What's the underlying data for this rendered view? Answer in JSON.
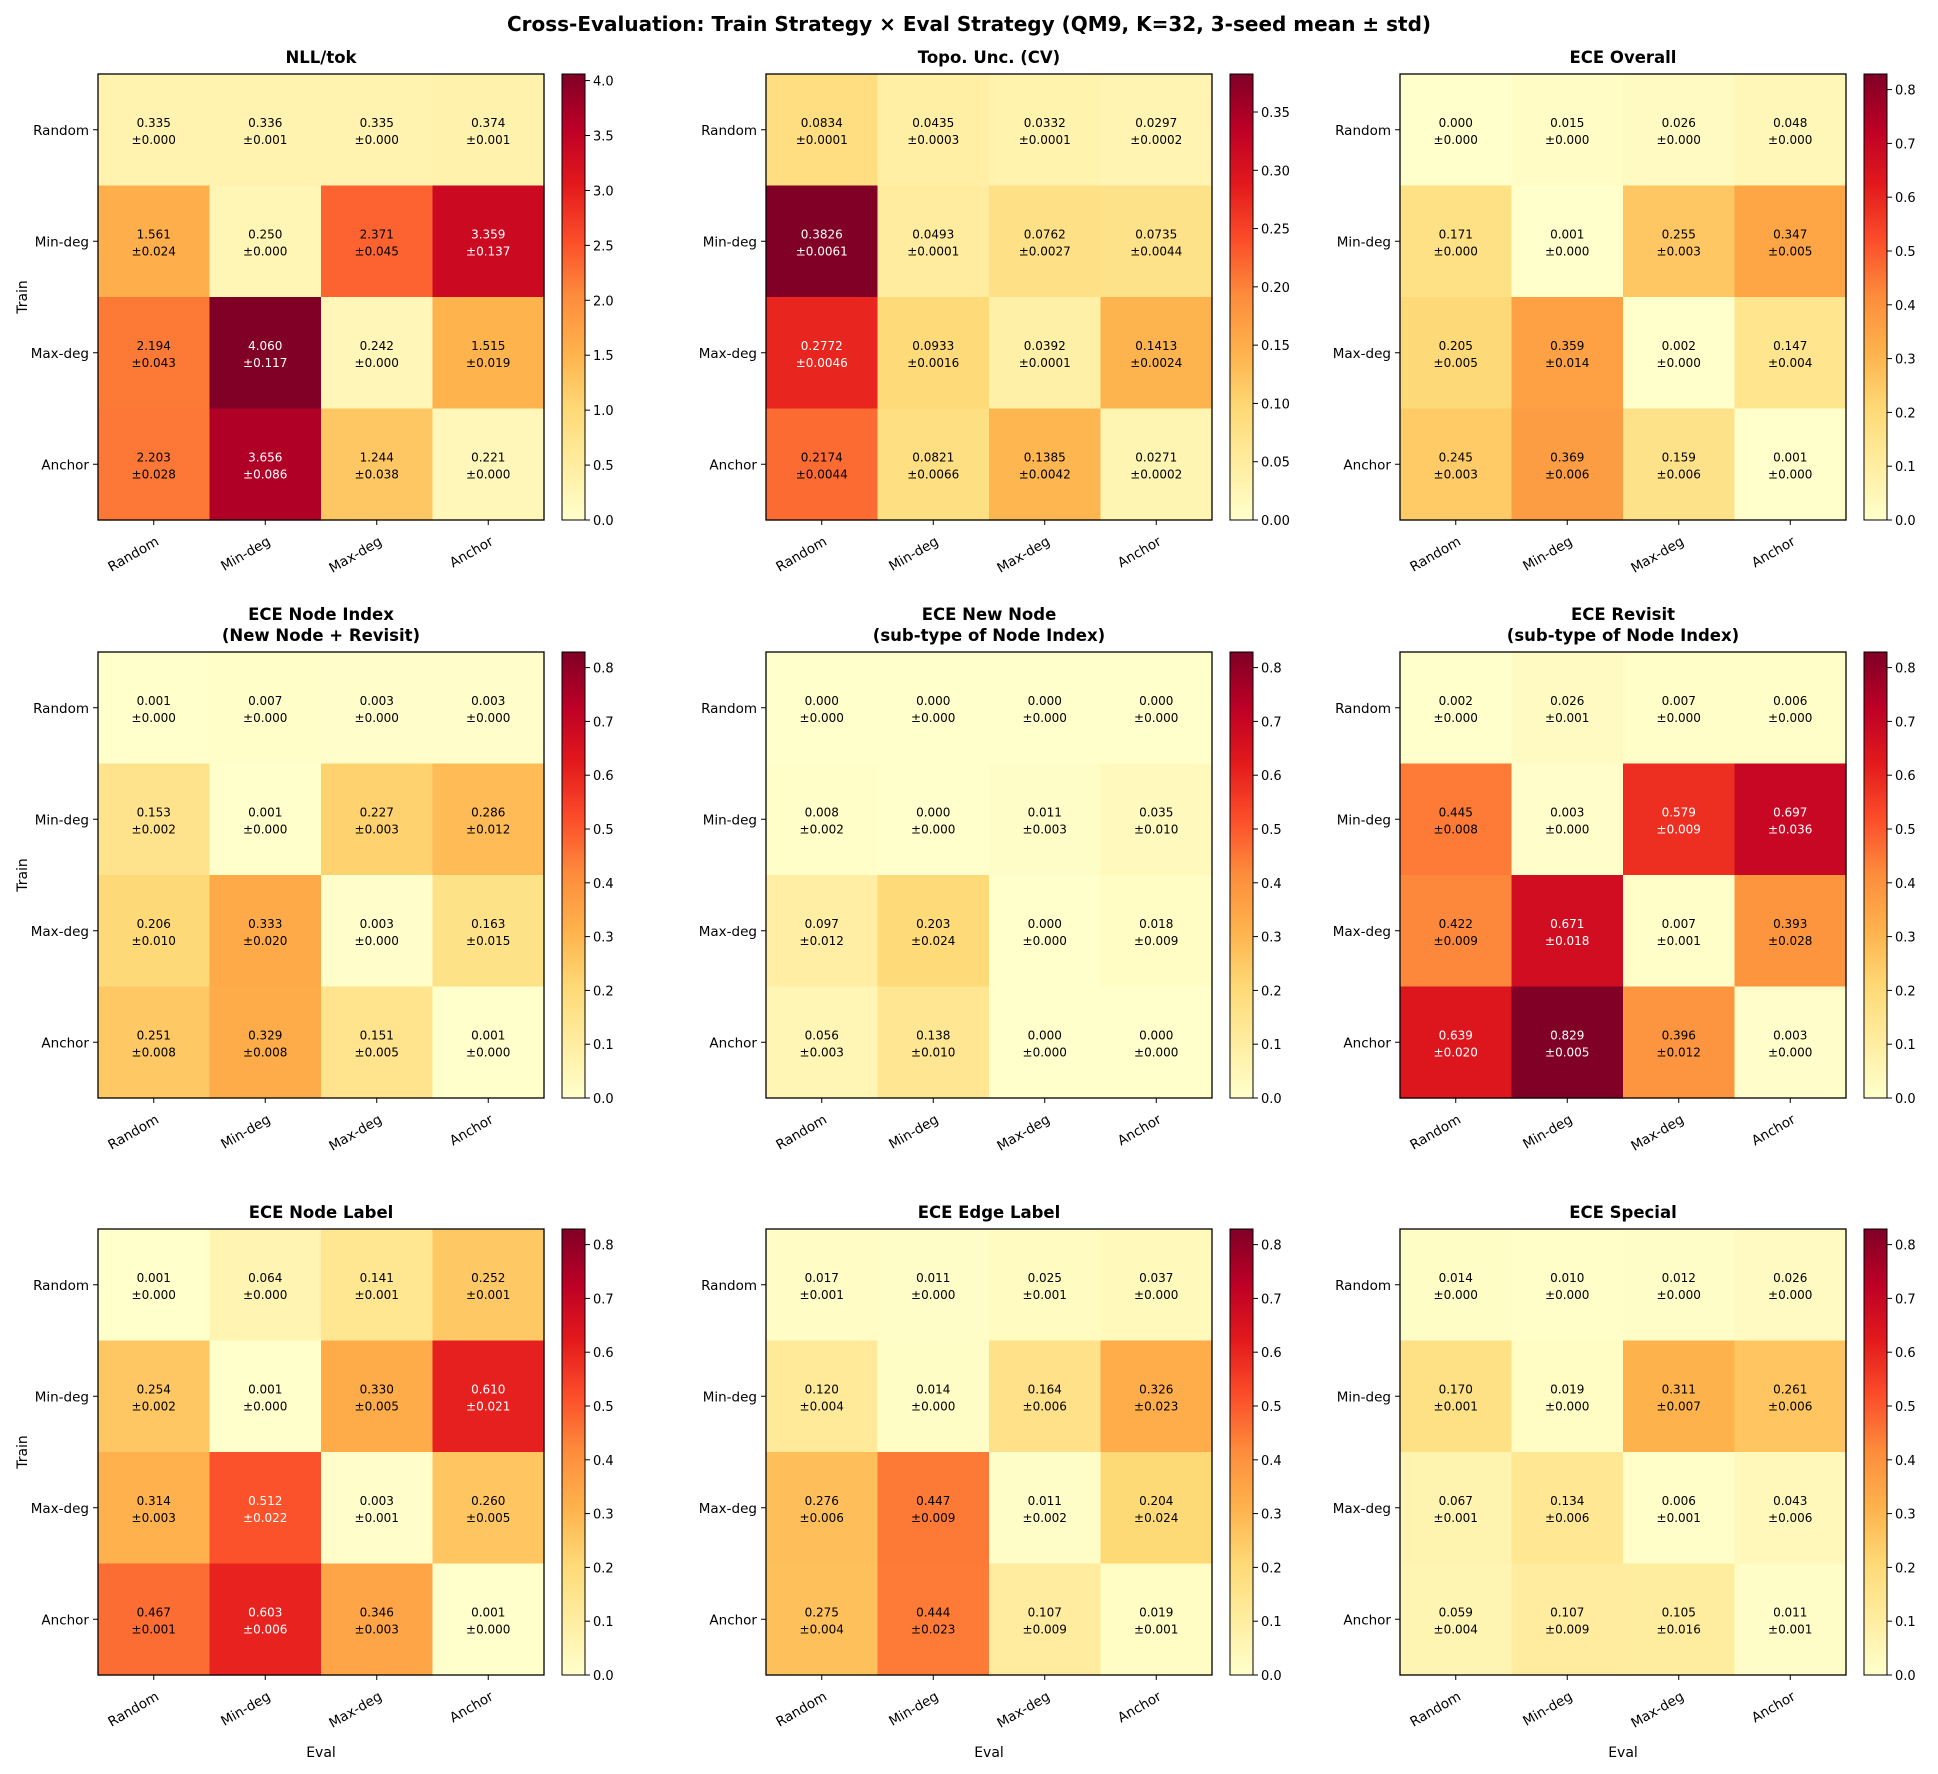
{
  "chart_data": {
    "type": "heatmap",
    "title": "Cross-Evaluation: Train Strategy × Eval Strategy  (QM9, K=32, 3-seed mean ± std)",
    "xlabel": "Eval",
    "ylabel": "Train",
    "categories": [
      "Random",
      "Min-deg",
      "Max-deg",
      "Anchor"
    ],
    "colormap": "YlOrRd",
    "panels": [
      {
        "title": [
          "NLL/tok"
        ],
        "vmax": 4.06,
        "colorbar_ticks": [
          0.0,
          0.5,
          1.0,
          1.5,
          2.0,
          2.5,
          3.0,
          3.5,
          4.0
        ],
        "tick_decimals": 1,
        "decimals": 3,
        "values": [
          [
            0.335,
            0.336,
            0.335,
            0.374
          ],
          [
            1.561,
            0.25,
            2.371,
            3.359
          ],
          [
            2.194,
            4.06,
            0.242,
            1.515
          ],
          [
            2.203,
            3.656,
            1.244,
            0.221
          ]
        ],
        "std": [
          [
            0.0,
            0.001,
            0.0,
            0.001
          ],
          [
            0.024,
            0.0,
            0.045,
            0.137
          ],
          [
            0.043,
            0.117,
            0.0,
            0.019
          ],
          [
            0.028,
            0.086,
            0.038,
            0.0
          ]
        ]
      },
      {
        "title": [
          "Topo. Unc. (CV)"
        ],
        "vmax": 0.3826,
        "colorbar_ticks": [
          0.0,
          0.05,
          0.1,
          0.15,
          0.2,
          0.25,
          0.3,
          0.35
        ],
        "tick_decimals": 2,
        "decimals": 4,
        "values": [
          [
            0.0834,
            0.0435,
            0.0332,
            0.0297
          ],
          [
            0.3826,
            0.0493,
            0.0762,
            0.0735
          ],
          [
            0.2772,
            0.0933,
            0.0392,
            0.1413
          ],
          [
            0.2174,
            0.0821,
            0.1385,
            0.0271
          ]
        ],
        "std": [
          [
            0.0001,
            0.0003,
            0.0001,
            0.0002
          ],
          [
            0.0061,
            0.0001,
            0.0027,
            0.0044
          ],
          [
            0.0046,
            0.0016,
            0.0001,
            0.0024
          ],
          [
            0.0044,
            0.0066,
            0.0042,
            0.0002
          ]
        ]
      },
      {
        "title": [
          "ECE Overall"
        ],
        "vmax": 0.829,
        "colorbar_ticks": [
          0.0,
          0.1,
          0.2,
          0.3,
          0.4,
          0.5,
          0.6,
          0.7,
          0.8
        ],
        "tick_decimals": 1,
        "decimals": 3,
        "values": [
          [
            0.0,
            0.015,
            0.026,
            0.048
          ],
          [
            0.171,
            0.001,
            0.255,
            0.347
          ],
          [
            0.205,
            0.359,
            0.002,
            0.147
          ],
          [
            0.245,
            0.369,
            0.159,
            0.001
          ]
        ],
        "std": [
          [
            0.0,
            0.0,
            0.0,
            0.0
          ],
          [
            0.0,
            0.0,
            0.003,
            0.005
          ],
          [
            0.005,
            0.014,
            0.0,
            0.004
          ],
          [
            0.003,
            0.006,
            0.006,
            0.0
          ]
        ]
      },
      {
        "title": [
          "ECE Node Index",
          "(New Node + Revisit)"
        ],
        "vmax": 0.829,
        "colorbar_ticks": [
          0.0,
          0.1,
          0.2,
          0.3,
          0.4,
          0.5,
          0.6,
          0.7,
          0.8
        ],
        "tick_decimals": 1,
        "decimals": 3,
        "values": [
          [
            0.001,
            0.007,
            0.003,
            0.003
          ],
          [
            0.153,
            0.001,
            0.227,
            0.286
          ],
          [
            0.206,
            0.333,
            0.003,
            0.163
          ],
          [
            0.251,
            0.329,
            0.151,
            0.001
          ]
        ],
        "std": [
          [
            0.0,
            0.0,
            0.0,
            0.0
          ],
          [
            0.002,
            0.0,
            0.003,
            0.012
          ],
          [
            0.01,
            0.02,
            0.0,
            0.015
          ],
          [
            0.008,
            0.008,
            0.005,
            0.0
          ]
        ]
      },
      {
        "title": [
          "ECE New Node",
          "(sub-type of Node Index)"
        ],
        "vmax": 0.829,
        "colorbar_ticks": [
          0.0,
          0.1,
          0.2,
          0.3,
          0.4,
          0.5,
          0.6,
          0.7,
          0.8
        ],
        "tick_decimals": 1,
        "decimals": 3,
        "values": [
          [
            0.0,
            0.0,
            0.0,
            0.0
          ],
          [
            0.008,
            0.0,
            0.011,
            0.035
          ],
          [
            0.097,
            0.203,
            0.0,
            0.018
          ],
          [
            0.056,
            0.138,
            0.0,
            0.0
          ]
        ],
        "std": [
          [
            0.0,
            0.0,
            0.0,
            0.0
          ],
          [
            0.002,
            0.0,
            0.003,
            0.01
          ],
          [
            0.012,
            0.024,
            0.0,
            0.009
          ],
          [
            0.003,
            0.01,
            0.0,
            0.0
          ]
        ]
      },
      {
        "title": [
          "ECE Revisit",
          "(sub-type of Node Index)"
        ],
        "vmax": 0.829,
        "colorbar_ticks": [
          0.0,
          0.1,
          0.2,
          0.3,
          0.4,
          0.5,
          0.6,
          0.7,
          0.8
        ],
        "tick_decimals": 1,
        "decimals": 3,
        "values": [
          [
            0.002,
            0.026,
            0.007,
            0.006
          ],
          [
            0.445,
            0.003,
            0.579,
            0.697
          ],
          [
            0.422,
            0.671,
            0.007,
            0.393
          ],
          [
            0.639,
            0.829,
            0.396,
            0.003
          ]
        ],
        "std": [
          [
            0.0,
            0.001,
            0.0,
            0.0
          ],
          [
            0.008,
            0.0,
            0.009,
            0.036
          ],
          [
            0.009,
            0.018,
            0.001,
            0.028
          ],
          [
            0.02,
            0.005,
            0.012,
            0.0
          ]
        ]
      },
      {
        "title": [
          "ECE Node Label"
        ],
        "vmax": 0.829,
        "colorbar_ticks": [
          0.0,
          0.1,
          0.2,
          0.3,
          0.4,
          0.5,
          0.6,
          0.7,
          0.8
        ],
        "tick_decimals": 1,
        "decimals": 3,
        "values": [
          [
            0.001,
            0.064,
            0.141,
            0.252
          ],
          [
            0.254,
            0.001,
            0.33,
            0.61
          ],
          [
            0.314,
            0.512,
            0.003,
            0.26
          ],
          [
            0.467,
            0.603,
            0.346,
            0.001
          ]
        ],
        "std": [
          [
            0.0,
            0.0,
            0.001,
            0.001
          ],
          [
            0.002,
            0.0,
            0.005,
            0.021
          ],
          [
            0.003,
            0.022,
            0.001,
            0.005
          ],
          [
            0.001,
            0.006,
            0.003,
            0.0
          ]
        ]
      },
      {
        "title": [
          "ECE Edge Label"
        ],
        "vmax": 0.829,
        "colorbar_ticks": [
          0.0,
          0.1,
          0.2,
          0.3,
          0.4,
          0.5,
          0.6,
          0.7,
          0.8
        ],
        "tick_decimals": 1,
        "decimals": 3,
        "values": [
          [
            0.017,
            0.011,
            0.025,
            0.037
          ],
          [
            0.12,
            0.014,
            0.164,
            0.326
          ],
          [
            0.276,
            0.447,
            0.011,
            0.204
          ],
          [
            0.275,
            0.444,
            0.107,
            0.019
          ]
        ],
        "std": [
          [
            0.001,
            0.0,
            0.001,
            0.0
          ],
          [
            0.004,
            0.0,
            0.006,
            0.023
          ],
          [
            0.006,
            0.009,
            0.002,
            0.024
          ],
          [
            0.004,
            0.023,
            0.009,
            0.001
          ]
        ]
      },
      {
        "title": [
          "ECE Special"
        ],
        "vmax": 0.829,
        "colorbar_ticks": [
          0.0,
          0.1,
          0.2,
          0.3,
          0.4,
          0.5,
          0.6,
          0.7,
          0.8
        ],
        "tick_decimals": 1,
        "decimals": 3,
        "values": [
          [
            0.014,
            0.01,
            0.012,
            0.026
          ],
          [
            0.17,
            0.019,
            0.311,
            0.261
          ],
          [
            0.067,
            0.134,
            0.006,
            0.043
          ],
          [
            0.059,
            0.107,
            0.105,
            0.011
          ]
        ],
        "std": [
          [
            0.0,
            0.0,
            0.0,
            0.0
          ],
          [
            0.001,
            0.0,
            0.007,
            0.006
          ],
          [
            0.001,
            0.006,
            0.001,
            0.006
          ],
          [
            0.004,
            0.009,
            0.016,
            0.001
          ]
        ]
      }
    ]
  }
}
